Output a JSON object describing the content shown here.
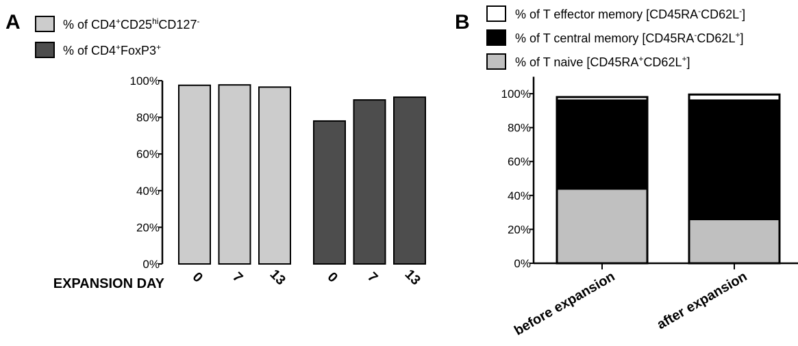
{
  "colors": {
    "light_bar": "#cccccc",
    "dark_bar": "#4d4d4d",
    "naive": "#c0c0c0",
    "central": "#000000",
    "effector": "#ffffff",
    "axis": "#000000"
  },
  "chart_data": [
    {
      "panel": "A",
      "type": "bar",
      "xlabel": "EXPANSION DAY",
      "ylim": [
        0,
        100
      ],
      "yticks": [
        "0%",
        "20%",
        "40%",
        "60%",
        "80%",
        "100%"
      ],
      "legend": [
        {
          "key": "cd25",
          "pre": "% of CD4",
          "sup1": "+",
          "mid": "CD25",
          "sup2": "hi",
          "post": "CD127",
          "sup3": "-"
        },
        {
          "key": "foxp3",
          "pre": "% of CD4",
          "sup1": "+",
          "mid": "FoxP3",
          "sup2": "+"
        }
      ],
      "groups": [
        {
          "series": "cd25",
          "categories": [
            "0",
            "7",
            "13"
          ],
          "values": [
            97.5,
            97.7,
            96.5
          ]
        },
        {
          "series": "foxp3",
          "categories": [
            "0",
            "7",
            "13"
          ],
          "values": [
            78,
            89.5,
            91
          ]
        }
      ]
    },
    {
      "panel": "B",
      "type": "bar",
      "stacked": true,
      "ylim": [
        0,
        110
      ],
      "yticks": [
        "0%",
        "20%",
        "40%",
        "60%",
        "80%",
        "100%"
      ],
      "categories": [
        "before expansion",
        "after expansion"
      ],
      "legend": [
        {
          "key": "effector",
          "pre": "% of T effector memory [CD45RA",
          "s1": "-",
          "mid": "CD62L",
          "s2": "-",
          "post": "]"
        },
        {
          "key": "central",
          "pre": "% of T central memory [CD45RA",
          "s1": "-",
          "mid": "CD62L",
          "s2": "+",
          "post": "]"
        },
        {
          "key": "naive",
          "pre": "% of T naive [CD45RA",
          "s1": "+",
          "mid": "CD62L",
          "s2": "+",
          "post": "]"
        }
      ],
      "series": [
        {
          "key": "naive",
          "values": [
            44,
            26
          ]
        },
        {
          "key": "central",
          "values": [
            52,
            70
          ]
        },
        {
          "key": "effector",
          "values": [
            2,
            3.5
          ]
        }
      ]
    }
  ]
}
